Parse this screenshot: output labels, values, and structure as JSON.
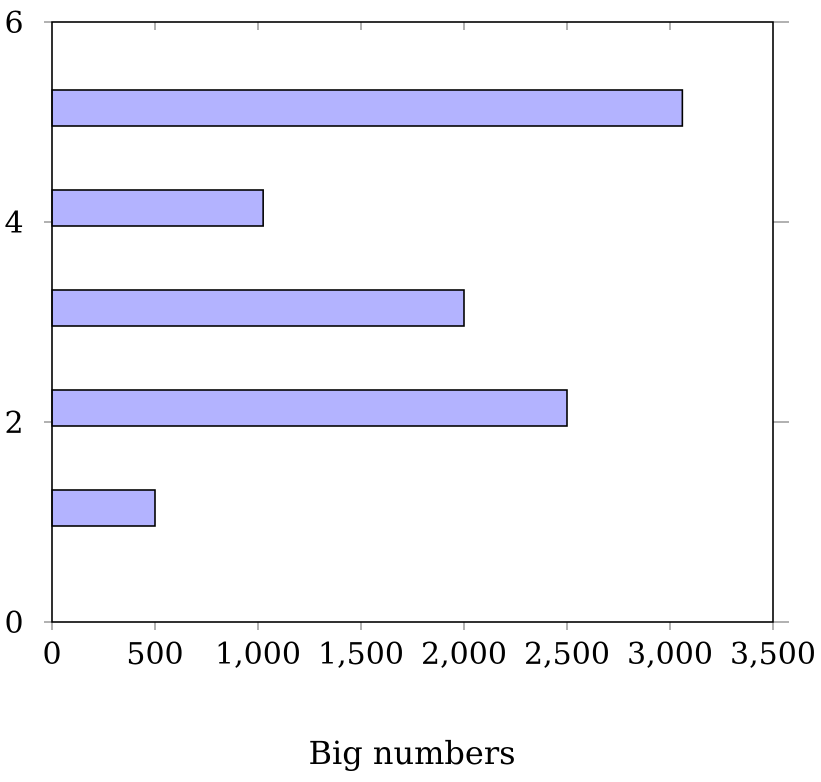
{
  "chart_data": {
    "type": "bar",
    "orientation": "horizontal",
    "bar_color": "#b3b3ff",
    "bar_edge_color": "#000000",
    "xlabel": "Big numbers",
    "ylabel": "",
    "xlim": [
      0,
      3500
    ],
    "ylim": [
      0,
      6
    ],
    "x_ticks": [
      0,
      500,
      1000,
      1500,
      2000,
      2500,
      3000,
      3500
    ],
    "x_tick_labels": [
      "0",
      "500",
      "1,000",
      "1,500",
      "2,000",
      "2,500",
      "3,000",
      "3,500"
    ],
    "y_ticks": [
      0,
      2,
      4,
      6
    ],
    "y_tick_labels": [
      "0",
      "2",
      "4",
      "6"
    ],
    "categories": [
      1,
      2,
      3,
      4,
      5
    ],
    "values": [
      500,
      2500,
      2000,
      1025,
      3060
    ],
    "grid": false,
    "legend": "none"
  }
}
